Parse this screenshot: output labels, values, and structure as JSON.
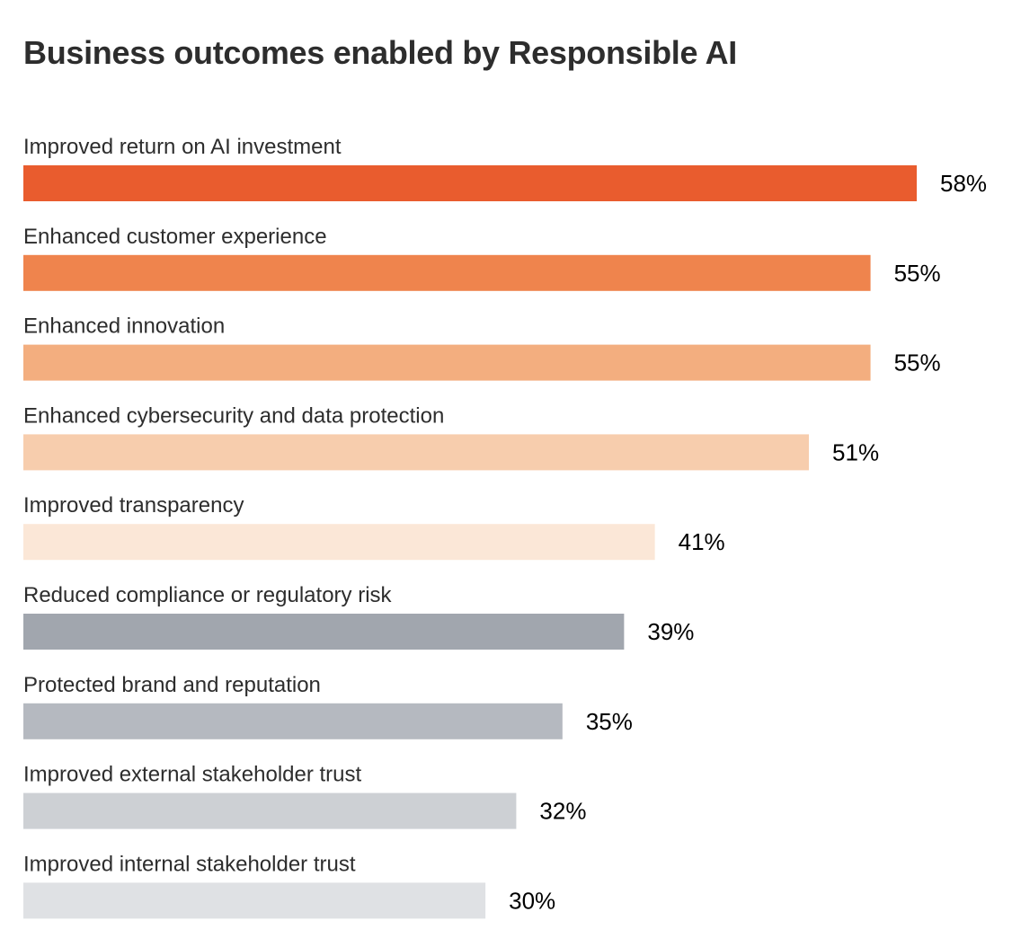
{
  "chart_data": {
    "type": "bar",
    "orientation": "horizontal",
    "title": "Business outcomes enabled by Responsible AI",
    "categories": [
      "Improved return on AI investment",
      "Enhanced customer experience",
      "Enhanced innovation",
      "Enhanced cybersecurity and data protection",
      "Improved transparency",
      "Reduced compliance or regulatory risk",
      "Protected brand and reputation",
      "Improved external stakeholder trust",
      "Improved internal stakeholder trust"
    ],
    "values": [
      58,
      55,
      55,
      51,
      41,
      39,
      35,
      32,
      30
    ],
    "value_labels": [
      "58%",
      "55%",
      "55%",
      "51%",
      "41%",
      "39%",
      "35%",
      "32%",
      "30%"
    ],
    "unit": "%",
    "colors": [
      "#e95c2e",
      "#ef844d",
      "#f3ae7f",
      "#f7cdad",
      "#fbe7d7",
      "#a1a6ae",
      "#b5b9c0",
      "#cdd0d4",
      "#dfe1e4"
    ],
    "xlim": [
      0,
      58
    ],
    "grid": false,
    "legend": "none"
  }
}
